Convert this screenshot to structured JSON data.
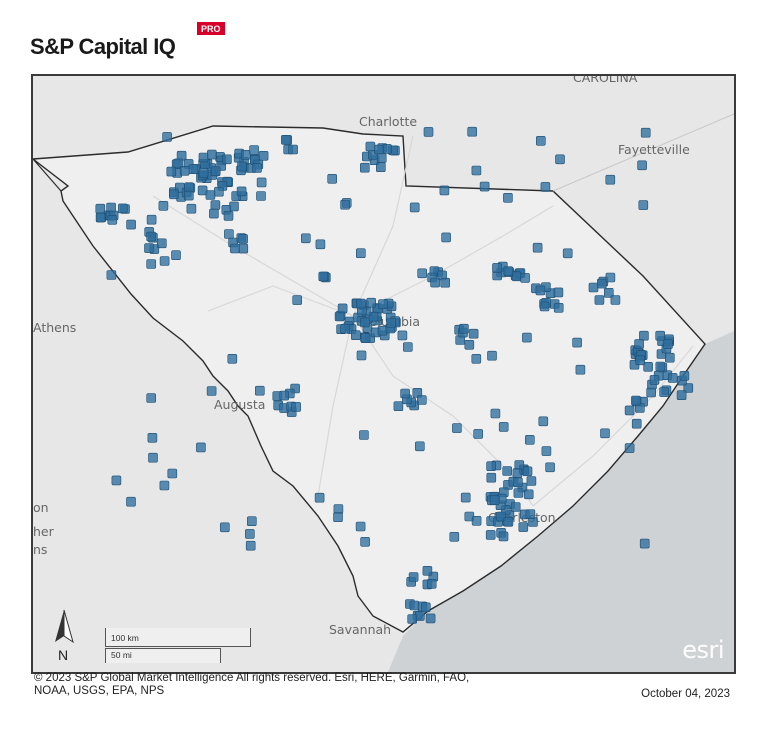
{
  "header": {
    "brand": "S&P Capital IQ",
    "badge": "PRO"
  },
  "map": {
    "labels": {
      "charlotte": "Charlotte",
      "fayetteville": "Fayetteville",
      "athens": "Athens",
      "augusta": "Augusta",
      "columbia": "Columbia",
      "charleston": "Charleston",
      "savannah": "Savannah",
      "carolina": "CAROLINA",
      "edge1": "on",
      "edge2": "her",
      "edge3": "ns"
    },
    "scale_km": "100 km",
    "scale_mi": "50 mi",
    "north": "N",
    "watermark": "esri",
    "marker_color": "#2f6e9e",
    "land_color": "#e6e6e6",
    "water_color": "#cfd2d4"
  },
  "footer": {
    "credits_line1": "© 2023 S&P Global Market Intelligence All rights reserved. Esri, HERE, Garmin, FAO,",
    "credits_line2": "NOAA, USGS, EPA, NPS",
    "date": "October 04, 2023"
  }
}
